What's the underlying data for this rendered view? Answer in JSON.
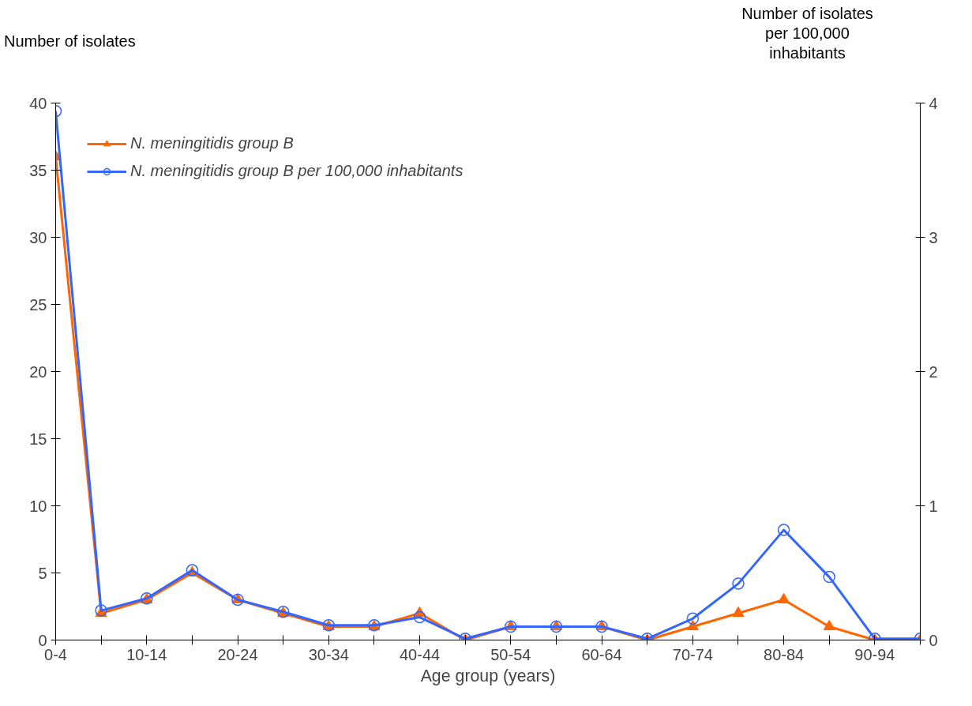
{
  "chart_data": {
    "type": "line",
    "xlabel": "Age group (years)",
    "ylabel": "Number of isolates",
    "y2label": "Number of isolates\nper 100,000\ninhabitants",
    "categories": [
      "0-4",
      null,
      "10-14",
      null,
      "20-24",
      null,
      "30-34",
      null,
      "40-44",
      null,
      "50-54",
      null,
      "60-64",
      null,
      "70-74",
      null,
      "80-84",
      null,
      "90-94",
      null
    ],
    "series": [
      {
        "name": "N. meningitidis group B",
        "color": "#ff6600",
        "marker": "triangle",
        "values": [
          36,
          2,
          3,
          5,
          3,
          2,
          1,
          1,
          2,
          0,
          1,
          1,
          1,
          0,
          1,
          2,
          3,
          1,
          0,
          0
        ]
      },
      {
        "name": "N. meningitidis group B per 100,000 inhabitants",
        "color": "#3366ff",
        "marker": "circle",
        "axis": "y2",
        "values": [
          3.94,
          0.22,
          0.31,
          0.52,
          0.3,
          0.21,
          0.11,
          0.11,
          0.17,
          0.01,
          0.1,
          0.1,
          0.1,
          0.01,
          0.16,
          0.42,
          0.82,
          0.47,
          0.01,
          0.01
        ]
      }
    ],
    "ylim": [
      0,
      40
    ],
    "yticks": [
      0,
      5,
      10,
      15,
      20,
      25,
      30,
      35,
      40
    ],
    "y2lim": [
      0,
      4
    ],
    "y2ticks": [
      0,
      1,
      2,
      3,
      4
    ],
    "grid": false,
    "legend": "top left"
  }
}
